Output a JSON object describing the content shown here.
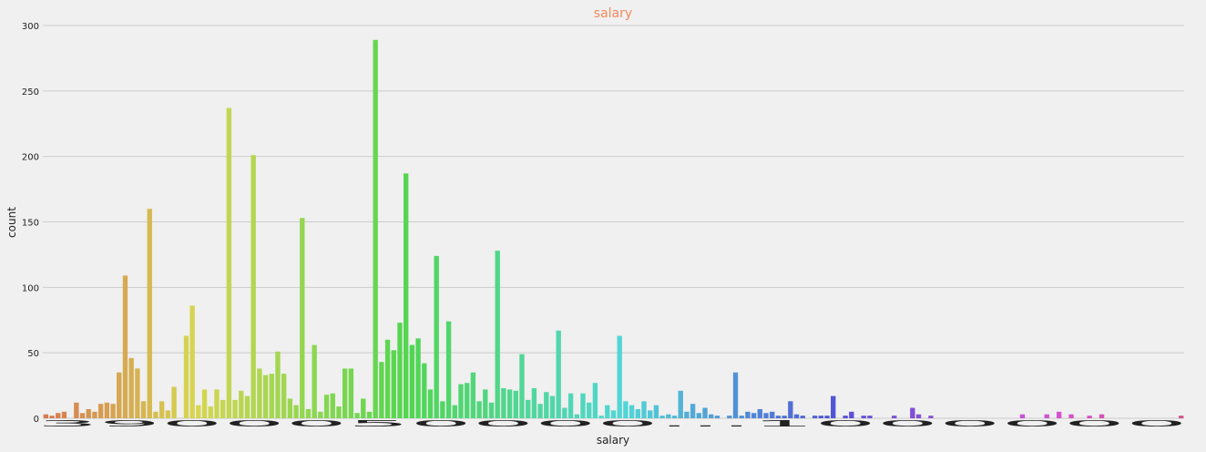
{
  "chart_data": {
    "type": "bar",
    "title": "salary",
    "xlabel": "salary",
    "ylabel": "count",
    "ylim": [
      0,
      300
    ],
    "yticks": [
      0,
      50,
      100,
      150,
      200,
      250,
      300
    ],
    "grid": true,
    "x_tick_labels_overlapping": "3900050000...1000000",
    "values": [
      3,
      2,
      4,
      5,
      0,
      12,
      4,
      7,
      5,
      11,
      12,
      11,
      35,
      109,
      46,
      38,
      13,
      160,
      5,
      13,
      6,
      24,
      0,
      63,
      86,
      10,
      22,
      9,
      22,
      14,
      237,
      14,
      21,
      17,
      201,
      38,
      33,
      34,
      51,
      34,
      15,
      10,
      153,
      7,
      56,
      5,
      18,
      19,
      9,
      38,
      38,
      4,
      15,
      5,
      289,
      43,
      60,
      52,
      73,
      187,
      56,
      61,
      42,
      22,
      124,
      13,
      74,
      10,
      26,
      27,
      35,
      13,
      22,
      12,
      128,
      23,
      22,
      21,
      49,
      14,
      23,
      11,
      20,
      17,
      67,
      8,
      19,
      3,
      19,
      12,
      27,
      2,
      10,
      6,
      63,
      13,
      10,
      7,
      13,
      6,
      10,
      2,
      3,
      2,
      21,
      5,
      11,
      4,
      8,
      3,
      2,
      0,
      2,
      35,
      2,
      5,
      4,
      7,
      4,
      5,
      2,
      2,
      13,
      3,
      2,
      0,
      2,
      2,
      2,
      17,
      0,
      2,
      5,
      0,
      2,
      2,
      0,
      0,
      0,
      2,
      0,
      0,
      8,
      3,
      0,
      2,
      0,
      0,
      0,
      0,
      0,
      0,
      0,
      0,
      0,
      0,
      0,
      0,
      0,
      0,
      3,
      0,
      0,
      0,
      3,
      0,
      5,
      0,
      3,
      0,
      0,
      2,
      0,
      3,
      0,
      0,
      0,
      0,
      0,
      0,
      0,
      0,
      0,
      0,
      0,
      0,
      2
    ]
  },
  "colors": {
    "title": "#f08a5d",
    "background": "#f0f0f0",
    "grid": "#cbcbcb"
  }
}
